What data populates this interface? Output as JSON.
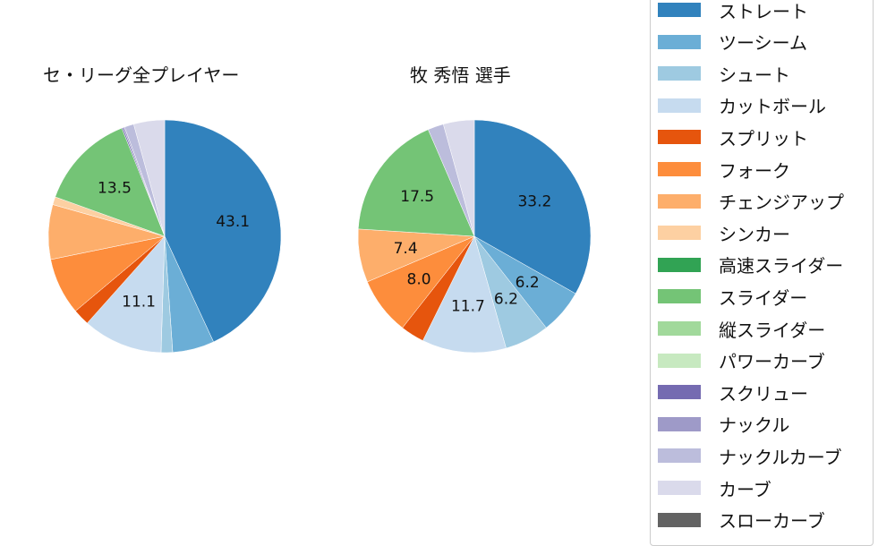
{
  "chart_data": [
    {
      "type": "pie",
      "title": "セ・リーグ全プレイヤー",
      "categories": [
        "ストレート",
        "ツーシーム",
        "シュート",
        "カットボール",
        "スプリット",
        "フォーク",
        "チェンジアップ",
        "シンカー",
        "スライダー",
        "スクリュー",
        "ナックル",
        "ナックルカーブ",
        "カーブ"
      ],
      "values": [
        43.1,
        5.8,
        1.6,
        11.1,
        2.3,
        7.9,
        7.6,
        1.1,
        13.5,
        0.2,
        0.2,
        1.3,
        4.3
      ],
      "labels_shown": {
        "ストレート": "43.1",
        "カットボール": "11.1",
        "スライダー": "13.5"
      },
      "start_angle": 90,
      "direction": "clockwise"
    },
    {
      "type": "pie",
      "title": "牧 秀悟  選手",
      "categories": [
        "ストレート",
        "ツーシーム",
        "シュート",
        "カットボール",
        "スプリット",
        "フォーク",
        "チェンジアップ",
        "スライダー",
        "ナックルカーブ",
        "カーブ"
      ],
      "values": [
        33.2,
        6.2,
        6.2,
        11.7,
        3.3,
        8.0,
        7.4,
        17.5,
        2.2,
        4.3
      ],
      "labels_shown": {
        "ストレート": "33.2",
        "ツーシーム": "6.2",
        "シュート": "6.2",
        "カットボール": "11.7",
        "フォーク": "8.0",
        "チェンジアップ": "7.4",
        "スライダー": "17.5"
      },
      "start_angle": 90,
      "direction": "clockwise"
    }
  ],
  "titles": {
    "left": "セ・リーグ全プレイヤー",
    "right": "牧 秀悟  選手"
  },
  "legend": [
    {
      "label": "ストレート",
      "color": "#3182bd"
    },
    {
      "label": "ツーシーム",
      "color": "#6baed6"
    },
    {
      "label": "シュート",
      "color": "#9ecae1"
    },
    {
      "label": "カットボール",
      "color": "#c6dbef"
    },
    {
      "label": "スプリット",
      "color": "#e6550d"
    },
    {
      "label": "フォーク",
      "color": "#fd8d3c"
    },
    {
      "label": "チェンジアップ",
      "color": "#fdae6b"
    },
    {
      "label": "シンカー",
      "color": "#fdd0a2"
    },
    {
      "label": "高速スライダー",
      "color": "#31a354"
    },
    {
      "label": "スライダー",
      "color": "#74c476"
    },
    {
      "label": "縦スライダー",
      "color": "#a1d99b"
    },
    {
      "label": "パワーカーブ",
      "color": "#c7e9c0"
    },
    {
      "label": "スクリュー",
      "color": "#756bb1"
    },
    {
      "label": "ナックル",
      "color": "#9e9ac8"
    },
    {
      "label": "ナックルカーブ",
      "color": "#bcbddc"
    },
    {
      "label": "カーブ",
      "color": "#dadaeb"
    },
    {
      "label": "スローカーブ",
      "color": "#636363"
    }
  ]
}
